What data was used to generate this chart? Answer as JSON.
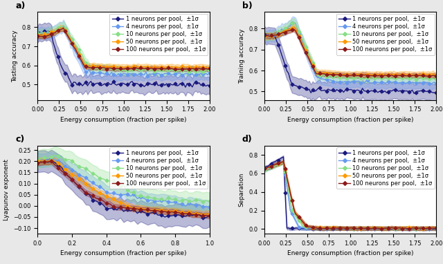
{
  "colors": {
    "1": "#1a1a7e",
    "4": "#6699ee",
    "10": "#88dd88",
    "50": "#ff9900",
    "100": "#8b1a1a"
  },
  "neurons": [
    1,
    4,
    10,
    50,
    100
  ],
  "marker": "D",
  "markersize": 2.5,
  "linewidth": 1.0,
  "alpha_fill": 0.3,
  "panel_a": {
    "xlabel": "Energy consumption (fraction per spike)",
    "ylabel": "Testing accuracy",
    "xlim": [
      0.0,
      2.0
    ],
    "ylim": [
      0.42,
      0.88
    ],
    "yticks": [
      0.5,
      0.6,
      0.7,
      0.8
    ],
    "xticks": [
      0.0,
      0.25,
      0.5,
      0.75,
      1.0,
      1.25,
      1.5,
      1.75,
      2.0
    ],
    "label": "a)"
  },
  "panel_b": {
    "xlabel": "Energy consumption (fraction per spike)",
    "ylabel": "Training accuracy",
    "xlim": [
      0.0,
      2.0
    ],
    "ylim": [
      0.46,
      0.88
    ],
    "yticks": [
      0.5,
      0.6,
      0.7,
      0.8
    ],
    "xticks": [
      0.0,
      0.25,
      0.5,
      0.75,
      1.0,
      1.25,
      1.5,
      1.75,
      2.0
    ],
    "label": "b)"
  },
  "panel_c": {
    "xlabel": "Energy consumption (fraction per spike)",
    "ylabel": "Lyapunov exponent",
    "xlim": [
      0.0,
      1.0
    ],
    "ylim": [
      -0.125,
      0.27
    ],
    "yticks": [
      -0.1,
      -0.05,
      0.0,
      0.05,
      0.1,
      0.15,
      0.2,
      0.25
    ],
    "xticks": [
      0.0,
      0.2,
      0.4,
      0.6,
      0.8,
      1.0
    ],
    "label": "c)"
  },
  "panel_d": {
    "xlabel": "Energy consumption (fraction per spike)",
    "ylabel": "Separation",
    "xlim": [
      0.0,
      2.0
    ],
    "ylim": [
      -0.05,
      0.9
    ],
    "yticks": [
      0.0,
      0.2,
      0.4,
      0.6,
      0.8
    ],
    "xticks": [
      0.0,
      0.25,
      0.5,
      0.75,
      1.0,
      1.25,
      1.5,
      1.75,
      2.0
    ],
    "label": "d)"
  },
  "fig_facecolor": "#e8e8e8",
  "legend_fontsize": 6.0,
  "axis_fontsize": 6.5,
  "tick_fontsize": 6.0,
  "label_fontsize": 9
}
